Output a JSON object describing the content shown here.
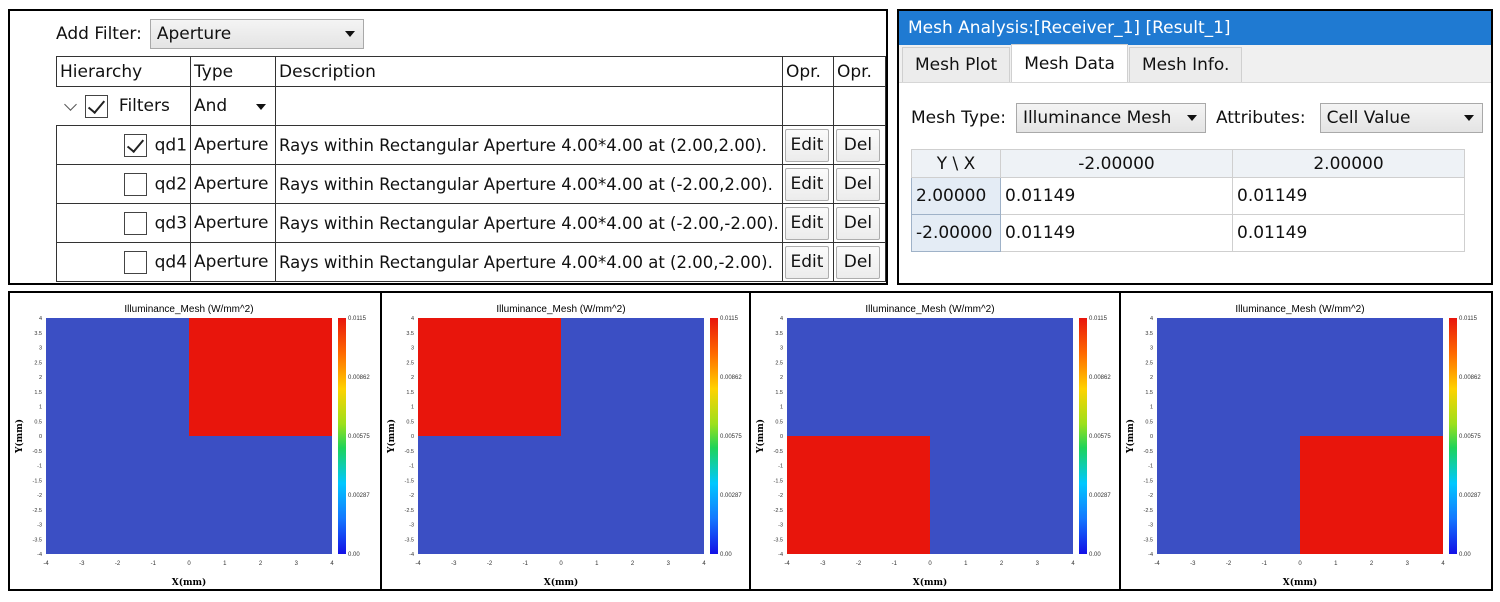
{
  "filter_panel": {
    "add_filter_label": "Add Filter:",
    "add_filter_value": "Aperture",
    "columns": [
      "Hierarchy",
      "Type",
      "Description",
      "Opr.",
      "Opr."
    ],
    "root": {
      "label": "Filters",
      "type": "And",
      "checked": true
    },
    "rows": [
      {
        "id": "qd1",
        "checked": true,
        "type": "Aperture",
        "description": "Rays within Rectangular Aperture 4.00*4.00 at (2.00,2.00).",
        "edit": "Edit",
        "del": "Del"
      },
      {
        "id": "qd2",
        "checked": false,
        "type": "Aperture",
        "description": "Rays within Rectangular Aperture 4.00*4.00 at (-2.00,2.00).",
        "edit": "Edit",
        "del": "Del"
      },
      {
        "id": "qd3",
        "checked": false,
        "type": "Aperture",
        "description": "Rays within Rectangular Aperture 4.00*4.00 at (-2.00,-2.00).",
        "edit": "Edit",
        "del": "Del"
      },
      {
        "id": "qd4",
        "checked": false,
        "type": "Aperture",
        "description": "Rays within Rectangular Aperture 4.00*4.00 at (2.00,-2.00).",
        "edit": "Edit",
        "del": "Del"
      }
    ]
  },
  "mesh_panel": {
    "title": "Mesh Analysis:[Receiver_1] [Result_1]",
    "tabs": [
      {
        "label": "Mesh Plot",
        "active": false
      },
      {
        "label": "Mesh Data",
        "active": true
      },
      {
        "label": "Mesh Info.",
        "active": false
      }
    ],
    "mesh_type_label": "Mesh Type:",
    "mesh_type_value": "Illuminance Mesh",
    "attributes_label": "Attributes:",
    "attributes_value": "Cell Value",
    "table": {
      "corner": "Y \\ X",
      "x_headers": [
        "-2.00000",
        "2.00000"
      ],
      "rows": [
        {
          "y": "2.00000",
          "values": [
            "0.01149",
            "0.01149"
          ]
        },
        {
          "y": "-2.00000",
          "values": [
            "0.01149",
            "0.01149"
          ]
        }
      ]
    }
  },
  "chart_data": [
    {
      "type": "heatmap",
      "title": "Illuminance_Mesh (W/mm^2)",
      "xlabel": "X(mm)",
      "ylabel": "Y(mm)",
      "xlim": [
        -4,
        4
      ],
      "ylim": [
        -4,
        4
      ],
      "quadrant": "qd1",
      "hot_region": {
        "x": [
          0,
          4
        ],
        "y": [
          0,
          4
        ]
      },
      "colorbar": [
        "0.0115",
        "0.00862",
        "0.00575",
        "0.00287",
        "0.00"
      ]
    },
    {
      "type": "heatmap",
      "title": "Illuminance_Mesh (W/mm^2)",
      "xlabel": "X(mm)",
      "ylabel": "Y(mm)",
      "xlim": [
        -4,
        4
      ],
      "ylim": [
        -4,
        4
      ],
      "quadrant": "qd2",
      "hot_region": {
        "x": [
          -4,
          0
        ],
        "y": [
          0,
          4
        ]
      },
      "colorbar": [
        "0.0115",
        "0.00862",
        "0.00575",
        "0.00287",
        "0.00"
      ]
    },
    {
      "type": "heatmap",
      "title": "Illuminance_Mesh (W/mm^2)",
      "xlabel": "X(mm)",
      "ylabel": "Y(mm)",
      "xlim": [
        -4,
        4
      ],
      "ylim": [
        -4,
        4
      ],
      "quadrant": "qd3",
      "hot_region": {
        "x": [
          -4,
          0
        ],
        "y": [
          -4,
          0
        ]
      },
      "colorbar": [
        "0.0115",
        "0.00862",
        "0.00575",
        "0.00287",
        "0.00"
      ]
    },
    {
      "type": "heatmap",
      "title": "Illuminance_Mesh (W/mm^2)",
      "xlabel": "X(mm)",
      "ylabel": "Y(mm)",
      "xlim": [
        -4,
        4
      ],
      "ylim": [
        -4,
        4
      ],
      "quadrant": "qd4",
      "hot_region": {
        "x": [
          0,
          4
        ],
        "y": [
          -4,
          0
        ]
      },
      "colorbar": [
        "0.0115",
        "0.00862",
        "0.00575",
        "0.00287",
        "0.00"
      ]
    }
  ],
  "colors": {
    "low": "#3b4fc4",
    "high": "#e8150c",
    "titlebar": "#1f7ad2"
  }
}
